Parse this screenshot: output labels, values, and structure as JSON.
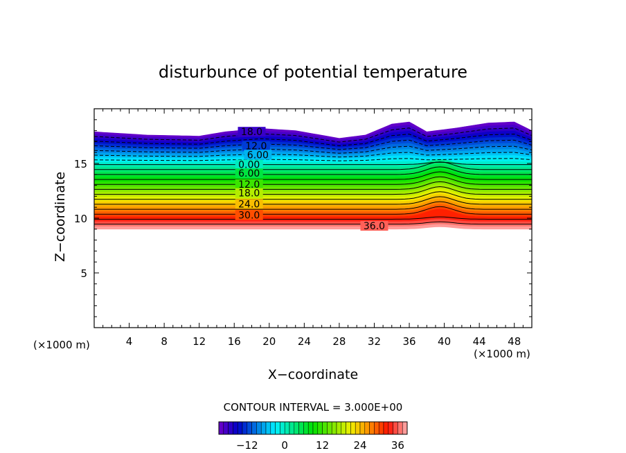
{
  "chart_data": {
    "type": "contour",
    "title": "disturbunce of potential temperature",
    "xlabel": "X−coordinate",
    "ylabel": "Z−coordinate",
    "x_unit_label": "(×1000 m)",
    "y_unit_label": "(×1000 m)",
    "xlim": [
      0,
      50
    ],
    "ylim": [
      0,
      20
    ],
    "x_ticks": [
      4,
      8,
      12,
      16,
      20,
      24,
      28,
      32,
      36,
      40,
      44,
      48
    ],
    "y_ticks": [
      5,
      10,
      15
    ],
    "contour_interval_text": "CONTOUR INTERVAL = 3.000E+00",
    "contour_interval": 3.0,
    "contour_labels": [
      {
        "text": "18.0",
        "x": 18.0,
        "z": 17.9,
        "value": -18
      },
      {
        "text": "12.0",
        "x": 18.5,
        "z": 16.6,
        "value": -12
      },
      {
        "text": "6.00",
        "x": 18.7,
        "z": 15.8,
        "value": -6
      },
      {
        "text": "0.00",
        "x": 17.7,
        "z": 14.9,
        "value": 0
      },
      {
        "text": "6.00",
        "x": 17.7,
        "z": 14.1,
        "value": 6
      },
      {
        "text": "12.0",
        "x": 17.7,
        "z": 13.1,
        "value": 12
      },
      {
        "text": "18.0",
        "x": 17.7,
        "z": 12.3,
        "value": 18
      },
      {
        "text": "24.0",
        "x": 17.7,
        "z": 11.3,
        "value": 24
      },
      {
        "text": "30.0",
        "x": 17.7,
        "z": 10.3,
        "value": 30
      },
      {
        "text": "36.0",
        "x": 32.0,
        "z": 9.3,
        "value": 36
      }
    ],
    "field": {
      "value_range": [
        -21,
        39
      ],
      "bottom_z": 9.0,
      "bottom_value": 39,
      "neutral_z": 14.9,
      "top_z_profile": [
        [
          0,
          17.9
        ],
        [
          6,
          17.6
        ],
        [
          12,
          17.5
        ],
        [
          15,
          17.9
        ],
        [
          19,
          18.2
        ],
        [
          23,
          18.0
        ],
        [
          28,
          17.3
        ],
        [
          31,
          17.6
        ],
        [
          34,
          18.6
        ],
        [
          36,
          18.8
        ],
        [
          38,
          17.9
        ],
        [
          41,
          18.2
        ],
        [
          45,
          18.7
        ],
        [
          48,
          18.8
        ],
        [
          50,
          18.0
        ]
      ],
      "top_value": -21
    },
    "colorbar": {
      "min": -21,
      "max": 39,
      "tick_values": [
        -12,
        0,
        12,
        24,
        36
      ],
      "tick_labels": [
        "−12",
        "0",
        "12",
        "24",
        "36"
      ]
    },
    "colors": {
      "violet": "#7000c8",
      "blue": "#0000c8",
      "cyan": "#00f0ff",
      "green": "#00e000",
      "yellow": "#f0f000",
      "orange": "#ff8c00",
      "red": "#ff1000",
      "pink": "#ffb0b0"
    }
  }
}
